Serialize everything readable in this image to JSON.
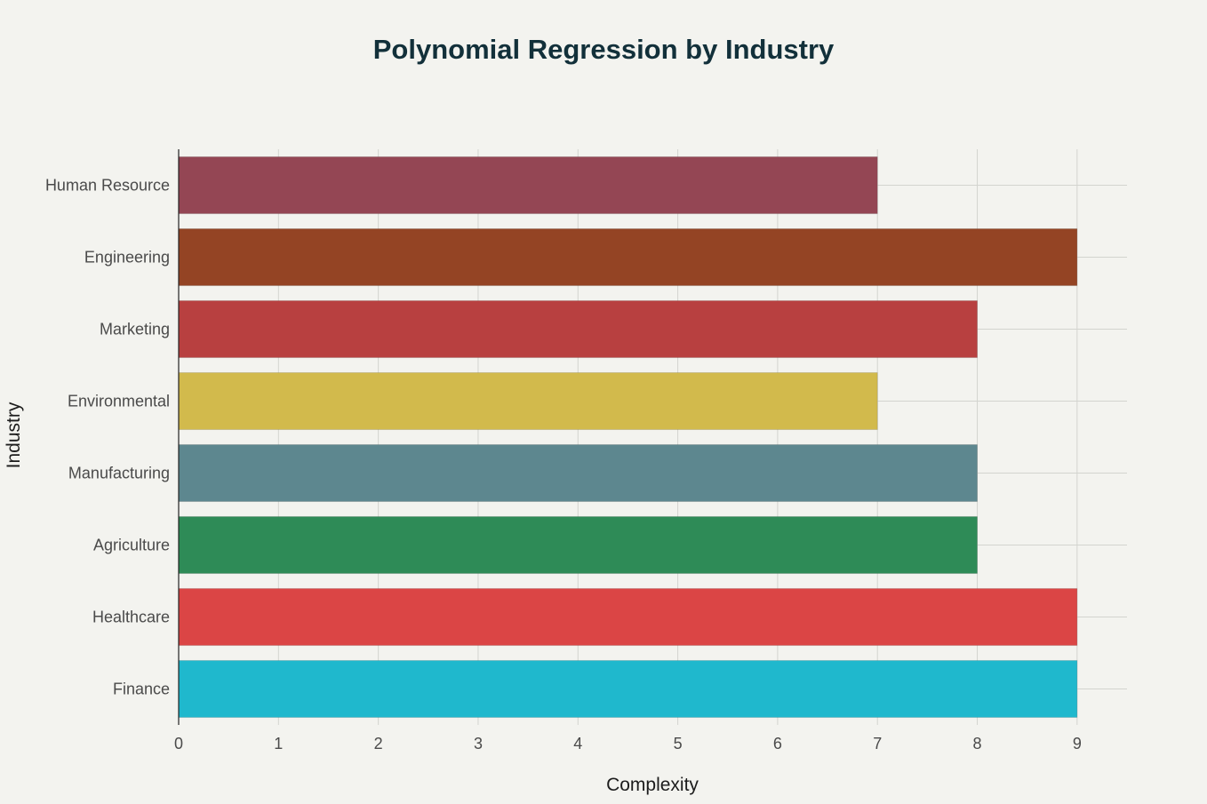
{
  "chart_data": {
    "type": "bar",
    "orientation": "horizontal",
    "title": "Polynomial Regression by Industry",
    "xlabel": "Complexity",
    "ylabel": "Industry",
    "xlim": [
      0,
      9.5
    ],
    "x_ticks": [
      0,
      1,
      2,
      3,
      4,
      5,
      6,
      7,
      8,
      9
    ],
    "grid": true,
    "categories": [
      "Human Resource",
      "Engineering",
      "Marketing",
      "Environmental",
      "Manufacturing",
      "Agriculture",
      "Healthcare",
      "Finance"
    ],
    "values": [
      7,
      9,
      8,
      7,
      8,
      8,
      9,
      9
    ],
    "colors": [
      "#944654",
      "#944424",
      "#b84040",
      "#d2ba4c",
      "#5d878f",
      "#2e8b57",
      "#db4545",
      "#1fb8cd"
    ]
  }
}
